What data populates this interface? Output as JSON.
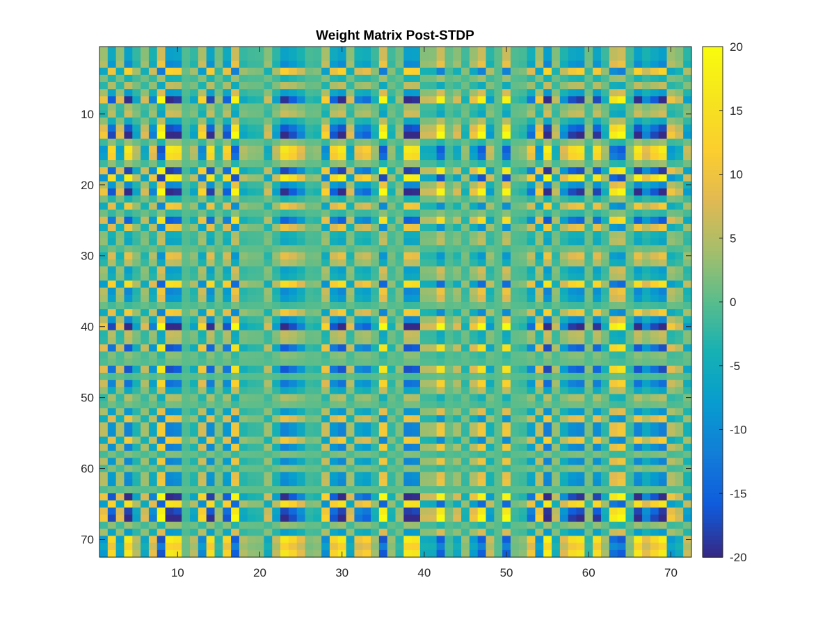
{
  "chart_data": {
    "type": "heatmap",
    "title": "Weight Matrix Post-STDP",
    "rows": 72,
    "cols": 72,
    "x_ticks": [
      10,
      20,
      30,
      40,
      50,
      60,
      70
    ],
    "y_ticks": [
      10,
      20,
      30,
      40,
      50,
      60,
      70
    ],
    "y_axis_direction": "reverse",
    "colorbar": {
      "limits": [
        -20,
        20
      ],
      "ticks": [
        20,
        15,
        10,
        5,
        0,
        -5,
        -10,
        -15,
        -20
      ],
      "colormap": "parula",
      "placement": "right"
    },
    "structure": "outer product of a row vector and a column vector of weights, values clipped to [-20, 20]",
    "col_factor": [
      2.2,
      -3.6,
      1.8,
      -4.4,
      -1.4,
      1.6,
      -2.4,
      4.4,
      -4.5,
      -4.2,
      -0.3,
      -1.4,
      2.8,
      -4.0,
      0.8,
      -3.4,
      4.1,
      -1.3,
      -0.8,
      -0.7,
      1.5,
      -1.6,
      -4.3,
      -3.5,
      -2.3,
      -0.6,
      -0.8,
      2.6,
      -3.4,
      -4.4,
      1.7,
      -2.6,
      -3.1,
      -1.0,
      4.3,
      -0.9,
      0.8,
      -4.5,
      -4.3,
      1.4,
      1.5,
      4.1,
      0.4,
      1.6,
      -0.9,
      2.1,
      4.1,
      -1.7,
      0.1,
      4.1,
      -0.4,
      -0.7,
      -2.8,
      2.4,
      -4.7,
      1.3,
      -2.1,
      -3.8,
      -4.2,
      0.7,
      -3.9,
      -1.1,
      3.6,
      4.2,
      -0.7,
      -4.4,
      -2.3,
      -3.6,
      -4.6,
      2.2,
      1.4,
      -1.7
    ],
    "row_factor": [
      1.6,
      1.6,
      2.3,
      -2.8,
      0.9,
      -1.3,
      1.8,
      4.5,
      -0.9,
      -1.5,
      1.3,
      3.8,
      4.9,
      -0.8,
      -3.8,
      -3.3,
      -0.8,
      4.1,
      -4.1,
      2.3,
      4.6,
      0.9,
      -2.4,
      0.6,
      3.5,
      -2.3,
      1.1,
      1.4,
      -0.4,
      -2.1,
      -1.3,
      1.7,
      1.3,
      -3.4,
      2.4,
      1.9,
      0.4,
      -2.5,
      2.4,
      4.9,
      -1.4,
      -1.2,
      3.7,
      -0.6,
      -0.3,
      3.8,
      0.2,
      3.0,
      1.4,
      -1.1,
      -0.4,
      2.0,
      -2.2,
      2.5,
      2.6,
      -2.5,
      2.6,
      -0.5,
      2.4,
      -0.6,
      2.2,
      2.4,
      -0.2,
      4.6,
      -3.5,
      4.1,
      4.9,
      -0.8,
      1.8,
      -3.9,
      -2.8,
      -3.8
    ]
  }
}
